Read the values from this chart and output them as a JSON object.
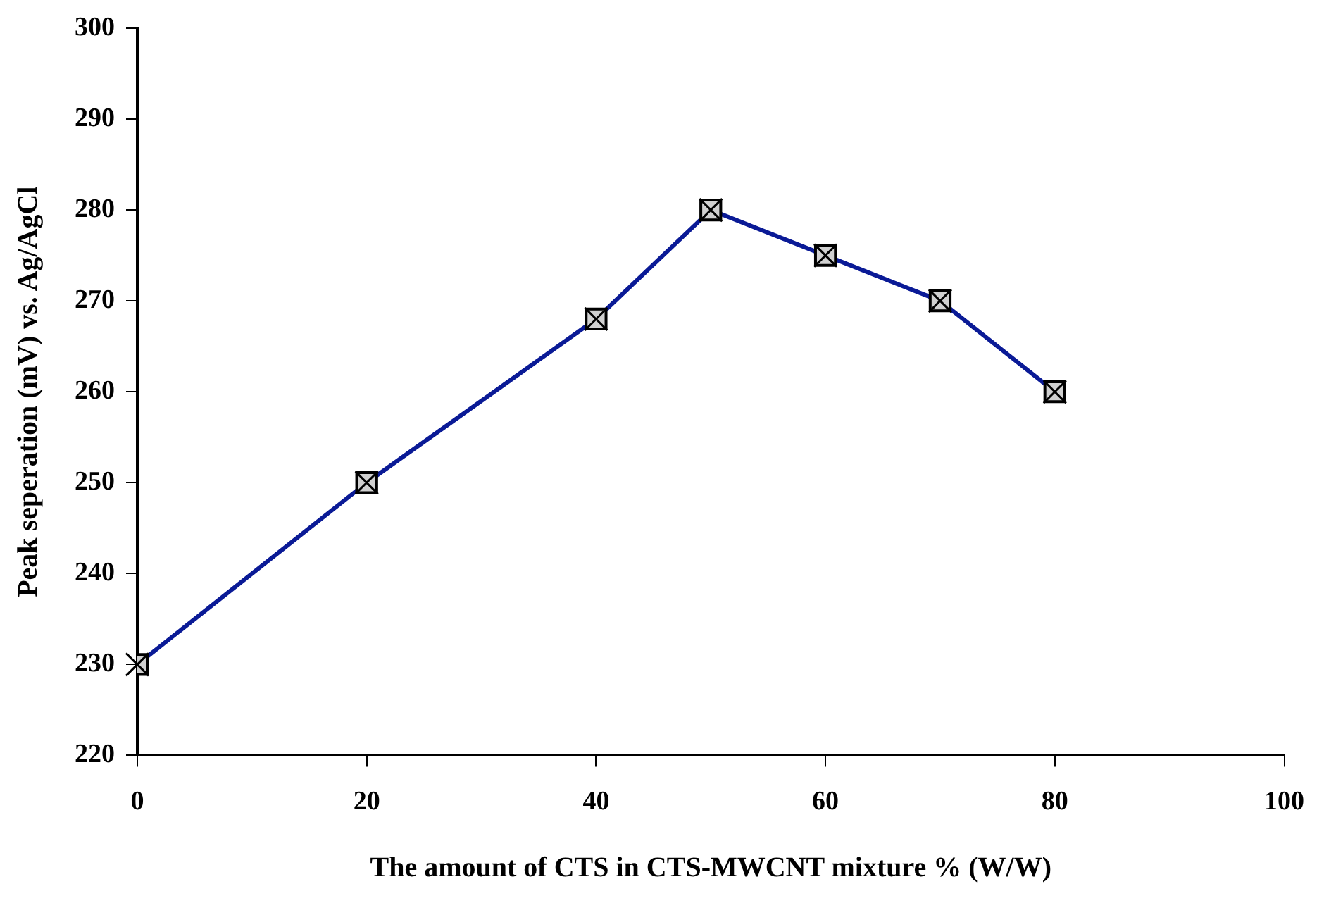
{
  "chart_data": {
    "type": "line",
    "xlabel": "The amount of CTS in CTS-MWCNT mixture % (W/W)",
    "ylabel": "Peak seperation (mV) vs. Ag/AgCl",
    "x": [
      0,
      20,
      40,
      50,
      60,
      70,
      80
    ],
    "series": [
      {
        "color": "#0a1a96",
        "values": [
          230,
          250,
          268,
          280,
          275,
          270,
          260
        ]
      }
    ],
    "xlim": [
      0,
      100
    ],
    "xticks": [
      0,
      20,
      40,
      60,
      80,
      100
    ],
    "ylim": [
      220,
      300
    ],
    "yticks": [
      220,
      230,
      240,
      250,
      260,
      270,
      280,
      290,
      300
    ],
    "grid": false,
    "legend": false,
    "marker": "square",
    "line_style": "solid"
  }
}
